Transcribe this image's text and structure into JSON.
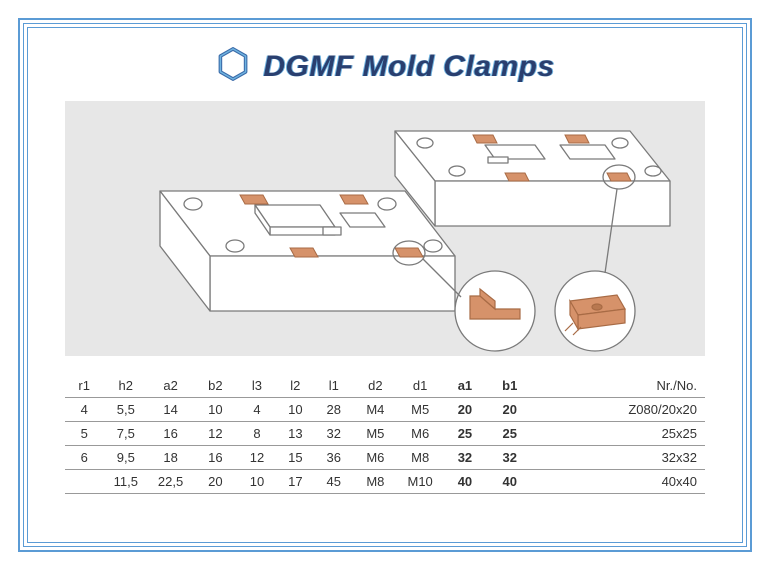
{
  "brand": {
    "name": "DGMF Mold Clamps",
    "logo_color": "#3a6aa8",
    "text_color": "#2a3f6f",
    "accent": "#5b9bd5"
  },
  "frame": {
    "border_color": "#5b9bd5"
  },
  "diagram": {
    "bg": "#e7e7e7",
    "plate_stroke": "#7a7a7a",
    "plate_fill": "#ffffff",
    "clamp_fill": "#d6926a",
    "clamp_stroke": "#a86b45",
    "callout_stroke": "#7a7a7a"
  },
  "table": {
    "columns": [
      "r1",
      "h2",
      "a2",
      "b2",
      "l3",
      "l2",
      "l1",
      "d2",
      "d1",
      "a1",
      "b1",
      "Nr./No."
    ],
    "bold_cols": [
      9,
      10
    ],
    "right_cols": [
      11
    ],
    "rows": [
      [
        "4",
        "5,5",
        "14",
        "10",
        "4",
        "10",
        "28",
        "M4",
        "M5",
        "20",
        "20",
        "Z080/20x20"
      ],
      [
        "5",
        "7,5",
        "16",
        "12",
        "8",
        "13",
        "32",
        "M5",
        "M6",
        "25",
        "25",
        "25x25"
      ],
      [
        "6",
        "9,5",
        "18",
        "16",
        "12",
        "15",
        "36",
        "M6",
        "M8",
        "32",
        "32",
        "32x32"
      ],
      [
        "",
        "11,5",
        "22,5",
        "20",
        "10",
        "17",
        "45",
        "M8",
        "M10",
        "40",
        "40",
        "40x40"
      ]
    ],
    "col_widths_pct": [
      6,
      7,
      7,
      7,
      6,
      6,
      6,
      7,
      7,
      7,
      7,
      27
    ]
  }
}
